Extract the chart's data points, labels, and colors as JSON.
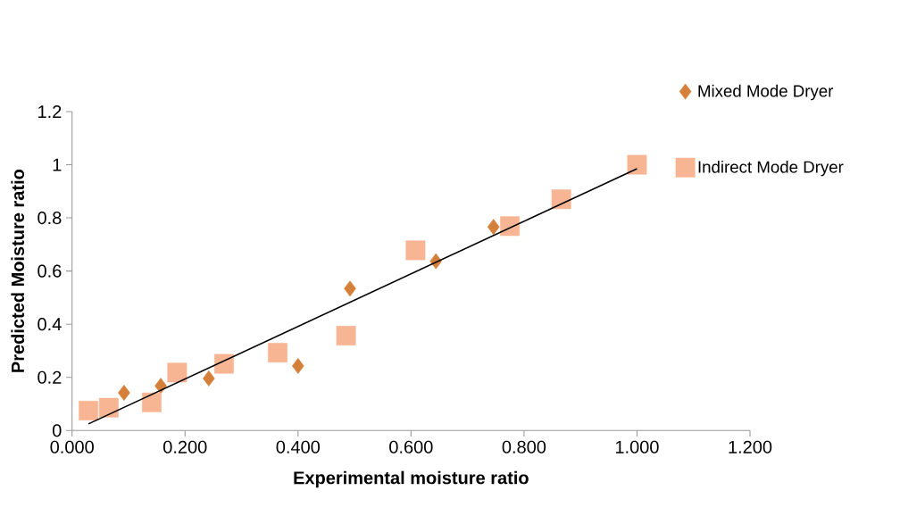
{
  "chart_data": {
    "type": "scatter",
    "xlabel": "Experimental moisture ratio",
    "ylabel": "Predicted Moisture ratio",
    "series": [
      {
        "name": "Mixed Mode Dryer",
        "marker": "diamond",
        "color": "#d5803a",
        "x": [
          0.092,
          0.157,
          0.242,
          0.4,
          0.492,
          0.644,
          0.746
        ],
        "values": [
          0.142,
          0.168,
          0.196,
          0.243,
          0.534,
          0.637,
          0.766
        ]
      },
      {
        "name": "Indirect Mode Dryer",
        "marker": "square",
        "color": "#f8b593",
        "x": [
          0.029,
          0.065,
          0.141,
          0.186,
          0.269,
          0.364,
          0.485,
          0.608,
          0.775,
          0.866,
          1.0
        ],
        "values": [
          0.075,
          0.086,
          0.106,
          0.218,
          0.251,
          0.293,
          0.357,
          0.678,
          0.769,
          0.87,
          1.0
        ]
      },
      {
        "type": "line",
        "marker": "none",
        "color": "#000000",
        "x": [
          0.029,
          1.0
        ],
        "values": [
          0.025,
          0.985
        ]
      }
    ],
    "xlim": [
      0,
      1.2
    ],
    "ylim": [
      0,
      1.2
    ],
    "xticks": [
      {
        "value": 0,
        "label": "0.000"
      },
      {
        "value": 0.2,
        "label": "0.200"
      },
      {
        "value": 0.4,
        "label": "0.400"
      },
      {
        "value": 0.6,
        "label": "0.600"
      },
      {
        "value": 0.8,
        "label": "0.800"
      },
      {
        "value": 1.0,
        "label": "1.000"
      },
      {
        "value": 1.2,
        "label": "1.200"
      }
    ],
    "yticks": [
      0,
      0.2,
      0.4,
      0.6,
      0.8,
      1,
      1.2
    ],
    "grid": false,
    "legend": "top right"
  }
}
